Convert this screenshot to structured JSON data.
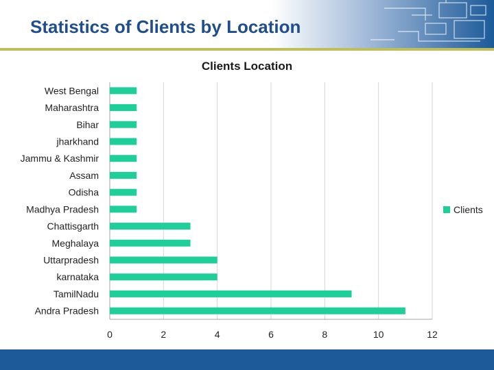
{
  "page": {
    "title": "Statistics of Clients by Location"
  },
  "colors": {
    "bar": "#1ecf9a",
    "header_blue": "#1c5a99",
    "title_blue": "#1f4e8c",
    "rule": "#bfbf5a"
  },
  "chart_data": {
    "type": "bar",
    "orientation": "horizontal",
    "title": "Clients Location",
    "categories": [
      "West Bengal",
      "Maharashtra",
      "Bihar",
      "jharkhand",
      "Jammu & Kashmir",
      "Assam",
      "Odisha",
      "Madhya Pradesh",
      "Chattisgarth",
      "Meghalaya",
      "Uttarpradesh",
      "karnataka",
      "TamilNadu",
      "Andra Pradesh"
    ],
    "series": [
      {
        "name": "Clients",
        "values": [
          1,
          1,
          1,
          1,
          1,
          1,
          1,
          1,
          3,
          3,
          4,
          4,
          9,
          11
        ]
      }
    ],
    "xlim": [
      0,
      12
    ],
    "xticks": [
      "0",
      "2",
      "4",
      "6",
      "8",
      "10",
      "12"
    ],
    "grid": "vertical",
    "legend": "right"
  }
}
